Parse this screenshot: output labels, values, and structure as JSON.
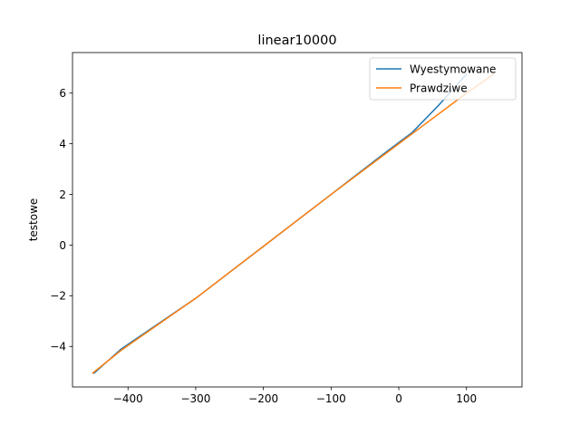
{
  "chart_data": {
    "type": "line",
    "title": "linear10000",
    "xlabel": "",
    "ylabel": "testowe",
    "xlim": [
      -482,
      182
    ],
    "ylim": [
      -5.6,
      7.6
    ],
    "xticks": [
      -400,
      -300,
      -200,
      -100,
      0,
      100
    ],
    "xtick_labels": [
      "−400",
      "−300",
      "−200",
      "−100",
      "0",
      "100"
    ],
    "yticks": [
      -4,
      -2,
      0,
      2,
      4,
      6
    ],
    "ytick_labels": [
      "−4",
      "−2",
      "0",
      "2",
      "4",
      "6"
    ],
    "grid": false,
    "legend_position": "upper right",
    "series": [
      {
        "name": "Wyestymowane",
        "color": "#1f77b4",
        "x": [
          -450,
          -410,
          -300,
          -200,
          -100,
          -20,
          20,
          60,
          80,
          100
        ],
        "y": [
          -5.05,
          -4.1,
          -2.1,
          -0.05,
          2.0,
          3.65,
          4.45,
          5.55,
          6.15,
          6.75
        ]
      },
      {
        "name": "Prawdziwe",
        "color": "#ff7f0e",
        "x": [
          -452,
          -410,
          -300,
          -200,
          -100,
          0,
          20,
          60,
          100,
          140
        ],
        "y": [
          -5.05,
          -4.15,
          -2.1,
          -0.05,
          2.0,
          4.0,
          4.4,
          5.2,
          6.0,
          6.75
        ]
      }
    ]
  }
}
